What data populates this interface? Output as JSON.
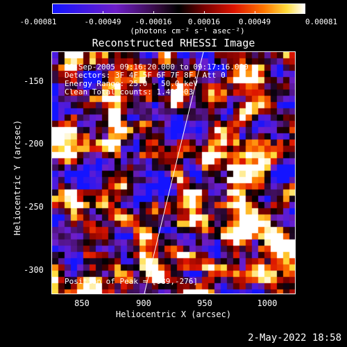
{
  "colorbar": {
    "ticks": [
      "-0.00081",
      "-0.00049",
      "-0.00016",
      "0.00016",
      "0.00049",
      "0.00081"
    ],
    "units": "(photons cm⁻² s⁻¹ asec⁻²)",
    "range": [
      -0.00081,
      0.00081
    ]
  },
  "plot": {
    "title": "Reconstructed RHESSI Image",
    "xlabel": "Heliocentric X (arcsec)",
    "ylabel": "Heliocentric Y (arcsec)",
    "xticks": [
      "850",
      "900",
      "950",
      "1000"
    ],
    "yticks": [
      "-150",
      "-200",
      "-250",
      "-300"
    ],
    "info": {
      "line1": "20-Sep-2005 09:16:20.000 to 09:17:16.000",
      "line2": "Detectors: 3F 4F 5F 6F 7F 8F, Att 0",
      "line3": "Energy Range: 25.0 - 50.0 keV",
      "line4": "Clean     Total counts: 1.41E+03"
    },
    "peak": "Position of Peak = [989,-276]"
  },
  "timestamp": "2-May-2022 18:58",
  "chart_data": {
    "type": "heatmap",
    "title": "Reconstructed RHESSI Image",
    "xlabel": "Heliocentric X (arcsec)",
    "ylabel": "Heliocentric Y (arcsec)",
    "xlim": [
      827,
      1020
    ],
    "ylim": [
      -318,
      -128
    ],
    "value_range": [
      -0.00081,
      0.00081
    ],
    "peak": [
      989,
      -276
    ]
  }
}
